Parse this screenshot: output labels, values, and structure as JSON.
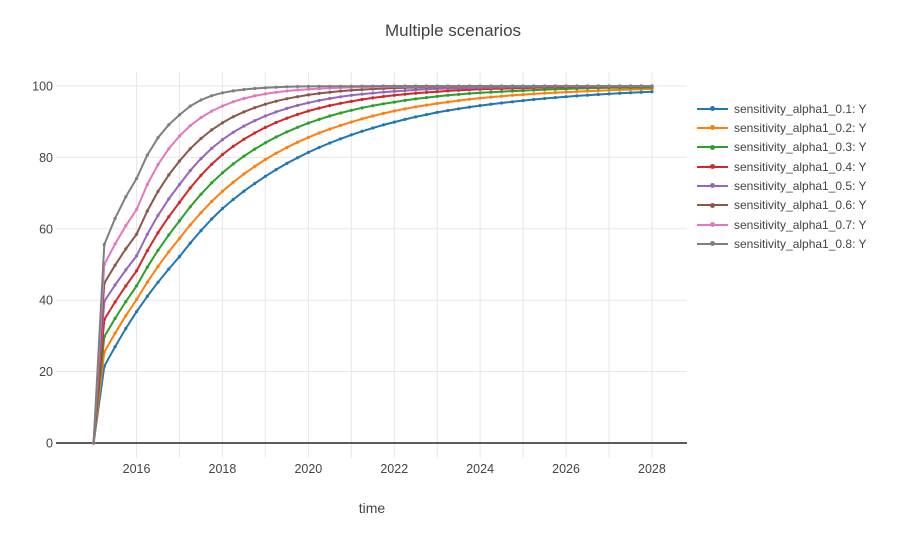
{
  "figure": {
    "title": "Multiple scenarios",
    "x_axis_title": "time",
    "background": "#ffffff",
    "text_color": "#444444",
    "grid_color": "#e7e7e7",
    "zeroline_color": "#444444"
  },
  "axes": {
    "x_tick_labels": [
      "2016",
      "2018",
      "2020",
      "2022",
      "2024",
      "2026",
      "2028"
    ],
    "y_tick_labels": [
      "0",
      "20",
      "40",
      "60",
      "80",
      "100"
    ]
  },
  "chart_data": {
    "type": "line",
    "mode": "lines+markers",
    "title": "Multiple scenarios",
    "xlabel": "time",
    "ylabel": "",
    "legend_position": "right",
    "grid": "on",
    "x_range": [
      2014.12,
      2028.85
    ],
    "y_range": [
      -4.2,
      104.2
    ],
    "x_ticks": [
      2016,
      2018,
      2020,
      2022,
      2024,
      2026,
      2028
    ],
    "y_ticks": [
      0,
      20,
      40,
      60,
      80,
      100
    ],
    "x_gridline_years": [
      2016,
      2017,
      2018,
      2019,
      2020,
      2021,
      2022,
      2023,
      2024,
      2025,
      2026,
      2027,
      2028
    ],
    "x": [
      2015,
      2015.25,
      2016,
      2017,
      2018,
      2019,
      2020,
      2021,
      2022,
      2023,
      2024,
      2025,
      2026,
      2027,
      2028
    ],
    "series": [
      {
        "name": "sensitivity_alpha1_0.1: Y",
        "color": "#1f77b4",
        "values": [
          0,
          21.5,
          36.8,
          52.2,
          65.7,
          74.7,
          81.4,
          86.3,
          89.9,
          92.6,
          94.5,
          95.9,
          97.0,
          97.8,
          98.4
        ]
      },
      {
        "name": "sensitivity_alpha1_0.2: Y",
        "color": "#ff7f0e",
        "values": [
          0,
          25.5,
          40.2,
          57.3,
          70.5,
          79.4,
          85.6,
          89.9,
          93.0,
          95.1,
          96.6,
          97.6,
          98.3,
          98.8,
          99.2
        ]
      },
      {
        "name": "sensitivity_alpha1_0.3: Y",
        "color": "#2ca02c",
        "values": [
          0,
          29.8,
          44.0,
          62.2,
          75.7,
          84.1,
          89.6,
          93.2,
          95.5,
          97.1,
          98.1,
          98.7,
          99.2,
          99.5,
          99.6
        ]
      },
      {
        "name": "sensitivity_alpha1_0.4: Y",
        "color": "#d62728",
        "values": [
          0,
          34.6,
          48.2,
          67.4,
          80.8,
          88.4,
          93.0,
          95.7,
          97.4,
          98.4,
          99.1,
          99.4,
          99.7,
          99.8,
          99.9
        ]
      },
      {
        "name": "sensitivity_alpha1_0.5: Y",
        "color": "#9467bd",
        "values": [
          0,
          39.7,
          52.4,
          72.4,
          85.0,
          91.6,
          95.3,
          97.4,
          98.5,
          99.2,
          99.5,
          99.7,
          99.85,
          99.9,
          99.95
        ]
      },
      {
        "name": "sensitivity_alpha1_0.6: Y",
        "color": "#8c564b",
        "values": [
          0,
          44.8,
          58.5,
          79.0,
          89.7,
          94.9,
          97.5,
          98.8,
          99.4,
          99.7,
          99.85,
          99.9,
          99.95,
          100,
          100
        ]
      },
      {
        "name": "sensitivity_alpha1_0.7: Y",
        "color": "#e377c2",
        "values": [
          0,
          50.0,
          65.4,
          86.0,
          94.4,
          97.8,
          99.1,
          99.6,
          99.85,
          99.9,
          99.95,
          100,
          100,
          100,
          100
        ]
      },
      {
        "name": "sensitivity_alpha1_0.8: Y",
        "color": "#7f7f7f",
        "values": [
          0,
          55.6,
          74.1,
          91.9,
          98.1,
          99.5,
          99.9,
          99.95,
          100,
          100,
          100,
          100,
          100,
          100,
          100
        ]
      }
    ]
  }
}
